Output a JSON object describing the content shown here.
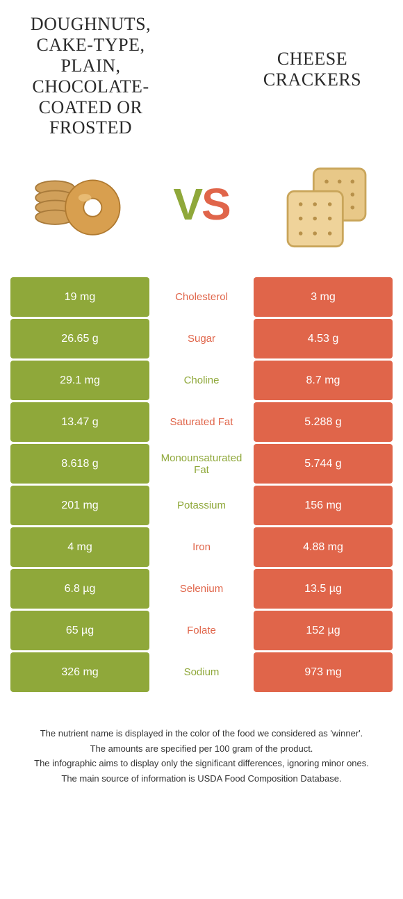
{
  "colors": {
    "left": "#8fa83a",
    "right": "#e0654a",
    "background": "#ffffff",
    "text": "#333333"
  },
  "header": {
    "left_title": "Doughnuts, cake-type, plain, chocolate-coated or frosted",
    "right_title": "Cheese crackers",
    "vs_v": "V",
    "vs_s": "S",
    "left_icon": "doughnuts",
    "right_icon": "crackers"
  },
  "rows": [
    {
      "label": "Cholesterol",
      "left": "19 mg",
      "right": "3 mg",
      "winner": "right"
    },
    {
      "label": "Sugar",
      "left": "26.65 g",
      "right": "4.53 g",
      "winner": "right"
    },
    {
      "label": "Choline",
      "left": "29.1 mg",
      "right": "8.7 mg",
      "winner": "left"
    },
    {
      "label": "Saturated Fat",
      "left": "13.47 g",
      "right": "5.288 g",
      "winner": "right"
    },
    {
      "label": "Monounsaturated Fat",
      "left": "8.618 g",
      "right": "5.744 g",
      "winner": "left"
    },
    {
      "label": "Potassium",
      "left": "201 mg",
      "right": "156 mg",
      "winner": "left"
    },
    {
      "label": "Iron",
      "left": "4 mg",
      "right": "4.88 mg",
      "winner": "right"
    },
    {
      "label": "Selenium",
      "left": "6.8 µg",
      "right": "13.5 µg",
      "winner": "right"
    },
    {
      "label": "Folate",
      "left": "65 µg",
      "right": "152 µg",
      "winner": "right"
    },
    {
      "label": "Sodium",
      "left": "326 mg",
      "right": "973 mg",
      "winner": "left"
    }
  ],
  "footer": {
    "line1": "The nutrient name is displayed in the color of the food we considered as 'winner'.",
    "line2": "The amounts are specified per 100 gram of the product.",
    "line3": "The infographic aims to display only the significant differences, ignoring minor ones.",
    "line4": "The main source of information is USDA Food Composition Database."
  },
  "typography": {
    "title_fontsize": 26,
    "vs_fontsize": 64,
    "cell_fontsize": 16,
    "label_fontsize": 15,
    "footer_fontsize": 13
  }
}
